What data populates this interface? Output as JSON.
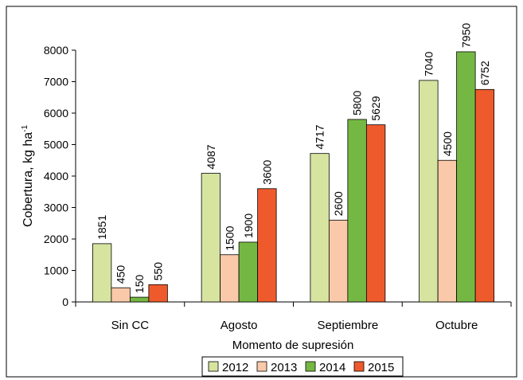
{
  "chart_data": {
    "type": "bar",
    "title": "",
    "xlabel": "Momento de supresión",
    "ylabel": "Cobertura, kg ha",
    "ylabel_sup": "-1",
    "categories": [
      "Sin CC",
      "Agosto",
      "Septiembre",
      "Octubre"
    ],
    "ylim": [
      0,
      8000
    ],
    "yticks": [
      0,
      1000,
      2000,
      3000,
      4000,
      5000,
      6000,
      7000,
      8000
    ],
    "grid": false,
    "legend_position": "bottom",
    "series": [
      {
        "name": "2012",
        "color": "#d6e4a0",
        "values": [
          1851,
          4087,
          4717,
          7040
        ]
      },
      {
        "name": "2013",
        "color": "#f9c9a9",
        "values": [
          450,
          1500,
          2600,
          4500
        ]
      },
      {
        "name": "2014",
        "color": "#74b843",
        "values": [
          150,
          1900,
          5800,
          7950
        ]
      },
      {
        "name": "2015",
        "color": "#ee5a2c",
        "values": [
          550,
          3600,
          5629,
          6752
        ]
      }
    ]
  }
}
